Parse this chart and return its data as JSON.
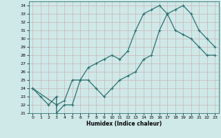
{
  "xlabel": "Humidex (Indice chaleur)",
  "xlim": [
    -0.5,
    23.5
  ],
  "ylim": [
    21,
    34.5
  ],
  "xticks": [
    0,
    1,
    2,
    3,
    4,
    5,
    6,
    7,
    8,
    9,
    10,
    11,
    12,
    13,
    14,
    15,
    16,
    17,
    18,
    19,
    20,
    21,
    22,
    23
  ],
  "yticks": [
    21,
    22,
    23,
    24,
    25,
    26,
    27,
    28,
    29,
    30,
    31,
    32,
    33,
    34
  ],
  "bg_color": "#cfe8e8",
  "line_color": "#2a7070",
  "line1_x": [
    0,
    1,
    2,
    3,
    3,
    4,
    5,
    6,
    7,
    8,
    9,
    10,
    11,
    12,
    13,
    14,
    15,
    16,
    17,
    18,
    19,
    20,
    21,
    22,
    23
  ],
  "line1_y": [
    24,
    23,
    22,
    23,
    21,
    22,
    22,
    25,
    25,
    24,
    23,
    24,
    25,
    25.5,
    26,
    27.5,
    28,
    31,
    33,
    33.5,
    34,
    33,
    31,
    30,
    29
  ],
  "line2_x": [
    0,
    3,
    4,
    5,
    6,
    7,
    8,
    9,
    10,
    11,
    12,
    13,
    14,
    15,
    16,
    17,
    18,
    19,
    20,
    21,
    22,
    23
  ],
  "line2_y": [
    24,
    22,
    22.5,
    25,
    25,
    26.5,
    27,
    27.5,
    28,
    27.5,
    28.5,
    31,
    33,
    33.5,
    34,
    33,
    31,
    30.5,
    30,
    29,
    28,
    28
  ]
}
